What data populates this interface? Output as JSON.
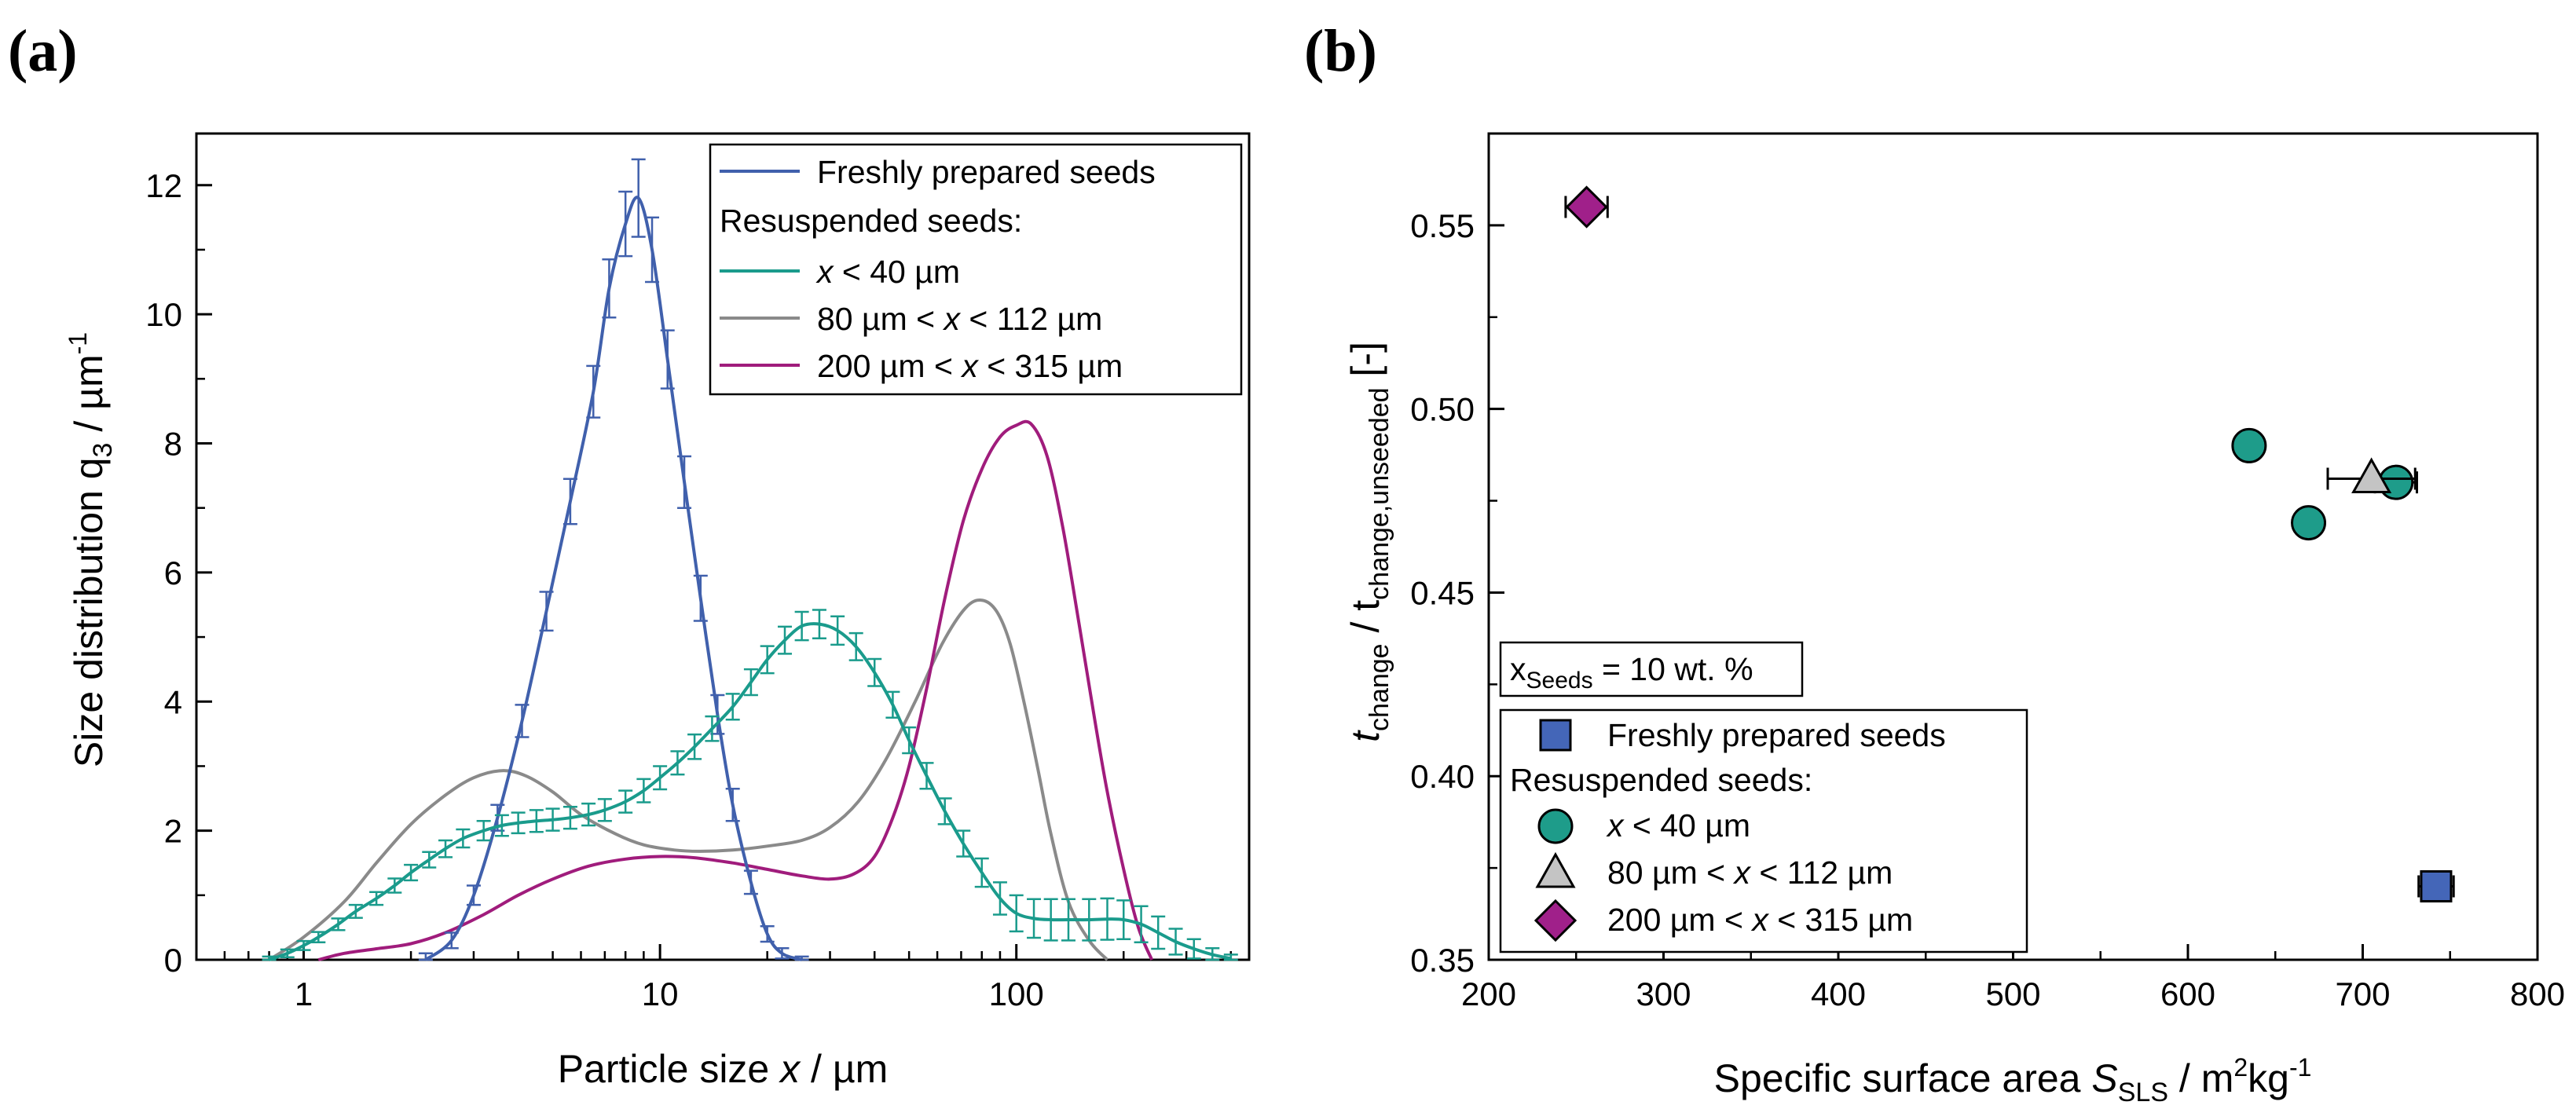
{
  "colors": {
    "fresh": "#4060AC",
    "lt40": "#1A9B8C",
    "mid": "#8A8A8A",
    "large": "#A01C7C",
    "lt40_marker": "#1E9C8A",
    "mid_marker": "#C4C4C4",
    "large_marker": "#A0208A",
    "fresh_marker": "#4466B8"
  },
  "chart_data": [
    {
      "panel": "(a)",
      "type": "line",
      "xscale": "log",
      "xlim": [
        0.5,
        450
      ],
      "ylim": [
        0,
        12.8
      ],
      "xlabel": {
        "prefix": "Particle size ",
        "italic": "x",
        "suffix": " / µm"
      },
      "ylabel": {
        "main": "Size distribution q",
        "sub": "3",
        "tail": " / µm",
        "sup": "-1"
      },
      "xticks": [
        {
          "value": 1,
          "label": "1"
        },
        {
          "value": 10,
          "label": "10"
        },
        {
          "value": 100,
          "label": "100"
        }
      ],
      "yticks": [
        {
          "value": 0,
          "label": "0"
        },
        {
          "value": 2,
          "label": "2"
        },
        {
          "value": 4,
          "label": "4"
        },
        {
          "value": 6,
          "label": "6"
        },
        {
          "value": 8,
          "label": "8"
        },
        {
          "value": 10,
          "label": "10"
        },
        {
          "value": 12,
          "label": "12"
        }
      ],
      "legend": {
        "entries": [
          {
            "key": "fresh",
            "label": "Freshly prepared seeds"
          },
          {
            "key": "header",
            "label": "Resuspended seeds:"
          },
          {
            "key": "lt40",
            "label_parts": [
              "",
              "x",
              " < 40 µm"
            ]
          },
          {
            "key": "mid",
            "label_parts": [
              "80 µm < ",
              "x",
              " < 112 µm"
            ]
          },
          {
            "key": "large",
            "label_parts": [
              "200 µm < ",
              "x",
              " < 315 µm"
            ]
          }
        ]
      },
      "series": [
        {
          "name": "Freshly prepared seeds",
          "key": "fresh",
          "x": [
            2.2,
            2.6,
            3.0,
            3.5,
            4.1,
            4.8,
            5.6,
            6.5,
            7.2,
            8.0,
            8.7,
            9.5,
            10.5,
            11.7,
            13.0,
            14.5,
            16.0,
            18.0,
            20.0,
            22.0,
            25.0
          ],
          "y": [
            0.0,
            0.3,
            1.0,
            2.2,
            3.7,
            5.4,
            7.1,
            8.8,
            10.4,
            11.4,
            11.8,
            11.0,
            9.3,
            7.4,
            5.6,
            3.8,
            2.4,
            1.2,
            0.4,
            0.1,
            0.0
          ],
          "err": [
            0.1,
            0.12,
            0.15,
            0.2,
            0.25,
            0.3,
            0.35,
            0.4,
            0.45,
            0.5,
            0.6,
            0.5,
            0.45,
            0.4,
            0.35,
            0.3,
            0.25,
            0.18,
            0.12,
            0.08,
            0.05
          ]
        },
        {
          "name": "x < 40 µm",
          "key": "lt40",
          "x": [
            0.8,
            0.9,
            1.0,
            1.1,
            1.25,
            1.4,
            1.6,
            1.8,
            2.0,
            2.25,
            2.5,
            2.8,
            3.2,
            3.6,
            4.0,
            4.5,
            5.0,
            5.6,
            6.3,
            7.0,
            8.0,
            9.0,
            10.0,
            11.2,
            12.5,
            14.0,
            16.0,
            18.0,
            20.0,
            22.4,
            25.0,
            28.0,
            31.5,
            35.5,
            40.0,
            45.0,
            50.0,
            56.0,
            63.0,
            71.0,
            80.0,
            90.0,
            100.0,
            112.0,
            125.0,
            140.0,
            160.0,
            180.0,
            200.0,
            224.0,
            250.0,
            280.0,
            315.0,
            355.0,
            400.0
          ],
          "y": [
            0.0,
            0.1,
            0.22,
            0.35,
            0.55,
            0.75,
            0.95,
            1.15,
            1.35,
            1.55,
            1.72,
            1.88,
            2.0,
            2.08,
            2.12,
            2.15,
            2.17,
            2.2,
            2.25,
            2.32,
            2.45,
            2.62,
            2.82,
            3.05,
            3.3,
            3.58,
            3.92,
            4.3,
            4.65,
            4.95,
            5.17,
            5.2,
            5.1,
            4.85,
            4.45,
            3.95,
            3.4,
            2.85,
            2.3,
            1.8,
            1.35,
            0.95,
            0.72,
            0.64,
            0.62,
            0.62,
            0.62,
            0.63,
            0.62,
            0.55,
            0.42,
            0.28,
            0.17,
            0.08,
            0.02
          ],
          "err": [
            0.05,
            0.06,
            0.07,
            0.08,
            0.09,
            0.1,
            0.1,
            0.11,
            0.12,
            0.12,
            0.13,
            0.14,
            0.15,
            0.16,
            0.16,
            0.17,
            0.17,
            0.17,
            0.17,
            0.17,
            0.17,
            0.18,
            0.18,
            0.18,
            0.19,
            0.19,
            0.2,
            0.2,
            0.21,
            0.21,
            0.22,
            0.22,
            0.22,
            0.21,
            0.21,
            0.2,
            0.2,
            0.2,
            0.2,
            0.2,
            0.22,
            0.25,
            0.28,
            0.3,
            0.32,
            0.32,
            0.32,
            0.32,
            0.3,
            0.28,
            0.25,
            0.2,
            0.15,
            0.1,
            0.06
          ]
        },
        {
          "name": "80 µm < x < 112 µm",
          "key": "mid",
          "x": [
            0.8,
            1.0,
            1.3,
            1.6,
            2.0,
            2.5,
            3.0,
            3.6,
            4.2,
            5.0,
            6.0,
            7.5,
            9.0,
            11.0,
            13.0,
            16.0,
            20.0,
            25.0,
            30.0,
            36.0,
            43.0,
            52.0,
            62.0,
            72.0,
            80.0,
            88.0,
            96.0,
            105.0,
            115.0,
            125.0,
            140.0,
            160.0,
            180.0
          ],
          "y": [
            0.0,
            0.35,
            0.9,
            1.5,
            2.1,
            2.55,
            2.82,
            2.93,
            2.85,
            2.6,
            2.25,
            1.95,
            1.78,
            1.7,
            1.68,
            1.7,
            1.76,
            1.85,
            2.05,
            2.45,
            3.1,
            4.0,
            4.9,
            5.45,
            5.57,
            5.4,
            4.9,
            4.0,
            2.95,
            1.95,
            0.9,
            0.3,
            0.0
          ]
        },
        {
          "name": "200 µm < x < 315 µm",
          "key": "large",
          "x": [
            1.1,
            1.3,
            1.6,
            2.0,
            2.5,
            3.2,
            4.0,
            5.0,
            6.3,
            8.0,
            10.0,
            12.5,
            16.0,
            20.0,
            25.0,
            30.0,
            35.0,
            40.0,
            45.0,
            50.0,
            56.0,
            63.0,
            71.0,
            80.0,
            90.0,
            100.0,
            110.0,
            122.0,
            135.0,
            150.0,
            165.0,
            180.0,
            200.0,
            220.0,
            240.0
          ],
          "y": [
            0.0,
            0.1,
            0.17,
            0.25,
            0.42,
            0.7,
            1.0,
            1.25,
            1.45,
            1.56,
            1.6,
            1.58,
            1.5,
            1.4,
            1.3,
            1.25,
            1.33,
            1.6,
            2.2,
            3.0,
            4.2,
            5.6,
            6.8,
            7.6,
            8.1,
            8.28,
            8.3,
            7.8,
            6.7,
            5.2,
            3.8,
            2.6,
            1.4,
            0.5,
            0.0
          ]
        }
      ]
    },
    {
      "panel": "(b)",
      "type": "scatter",
      "xlim": [
        200,
        800
      ],
      "ylim": [
        0.35,
        0.575
      ],
      "xlabel": {
        "prefix": "Specific surface area ",
        "italic": "S",
        "sub": "SLS",
        "tail": " / m",
        "sup": "2",
        "tail2": "kg",
        "sup2": "-1"
      },
      "ylabel": {
        "italic": "t",
        "sub1": "change",
        "mid": " / t",
        "sub2": "change,unseeded",
        "tail": " [-]"
      },
      "xticks": [
        {
          "value": 200,
          "label": "200"
        },
        {
          "value": 300,
          "label": "300"
        },
        {
          "value": 400,
          "label": "400"
        },
        {
          "value": 500,
          "label": "500"
        },
        {
          "value": 600,
          "label": "600"
        },
        {
          "value": 700,
          "label": "700"
        },
        {
          "value": 800,
          "label": "800"
        }
      ],
      "yticks": [
        {
          "value": 0.35,
          "label": "0.35"
        },
        {
          "value": 0.4,
          "label": "0.40"
        },
        {
          "value": 0.45,
          "label": "0.45"
        },
        {
          "value": 0.5,
          "label": "0.50"
        },
        {
          "value": 0.55,
          "label": "0.55"
        }
      ],
      "annotation": {
        "main": "x",
        "sub": "Seeds",
        "tail": " = 10 wt. %"
      },
      "legend": {
        "entries": [
          {
            "key": "fresh",
            "marker": "square",
            "label": "Freshly prepared seeds"
          },
          {
            "key": "header",
            "label": "Resuspended seeds:"
          },
          {
            "key": "lt40",
            "marker": "circle",
            "label_parts": [
              "",
              "x",
              " < 40 µm"
            ]
          },
          {
            "key": "mid",
            "marker": "triangle",
            "label_parts": [
              "80 µm < ",
              "x",
              " < 112 µm"
            ]
          },
          {
            "key": "large",
            "marker": "diamond",
            "label_parts": [
              "200 µm < ",
              "x",
              " < 315 µm"
            ]
          }
        ]
      },
      "series": [
        {
          "name": "Freshly prepared seeds",
          "key": "fresh",
          "marker": "square",
          "points": [
            {
              "x": 742,
              "y": 0.37,
              "xerr": 10
            }
          ]
        },
        {
          "name": "x < 40 µm",
          "key": "lt40",
          "marker": "circle",
          "points": [
            {
              "x": 635,
              "y": 0.49
            },
            {
              "x": 669,
              "y": 0.469
            },
            {
              "x": 719,
              "y": 0.48,
              "xerr": 12
            }
          ]
        },
        {
          "name": "80 µm < x < 112 µm",
          "key": "mid",
          "marker": "triangle",
          "points": [
            {
              "x": 705,
              "y": 0.481,
              "xerr": 25
            }
          ]
        },
        {
          "name": "200 µm < x < 315 µm",
          "key": "large",
          "marker": "diamond",
          "points": [
            {
              "x": 256,
              "y": 0.555,
              "xerr": 12
            }
          ]
        }
      ]
    }
  ]
}
